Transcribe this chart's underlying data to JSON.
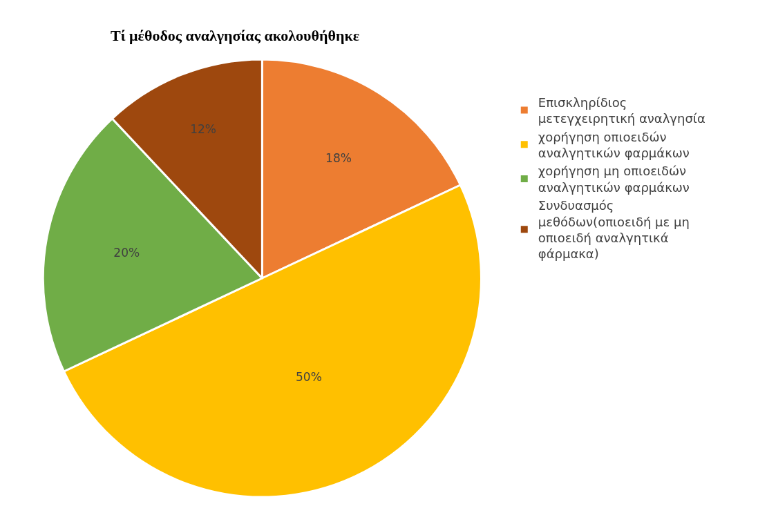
{
  "chart_data": {
    "type": "pie",
    "title": "Τί μέθοδος αναλγησίας ακολουθήθηκε",
    "categories": [
      "Επισκληρίδιος μετεγχειρητική αναλγησία",
      "χορήγηση οπιοειδών αναλγητικών φαρμάκων",
      "χορήγηση μη οπιοειδών αναλγητικών φαρμάκων",
      "Συνδυασμός μεθόδων(οπιοειδή με μη οπιοειδή αναλγητικά φάρμακα)"
    ],
    "values": [
      18,
      50,
      20,
      12
    ],
    "colors": [
      "#ed7d31",
      "#ffc000",
      "#70ad47",
      "#9e480e"
    ],
    "value_labels": [
      "18%",
      "50%",
      "20%",
      "12%"
    ],
    "legend": "right"
  }
}
